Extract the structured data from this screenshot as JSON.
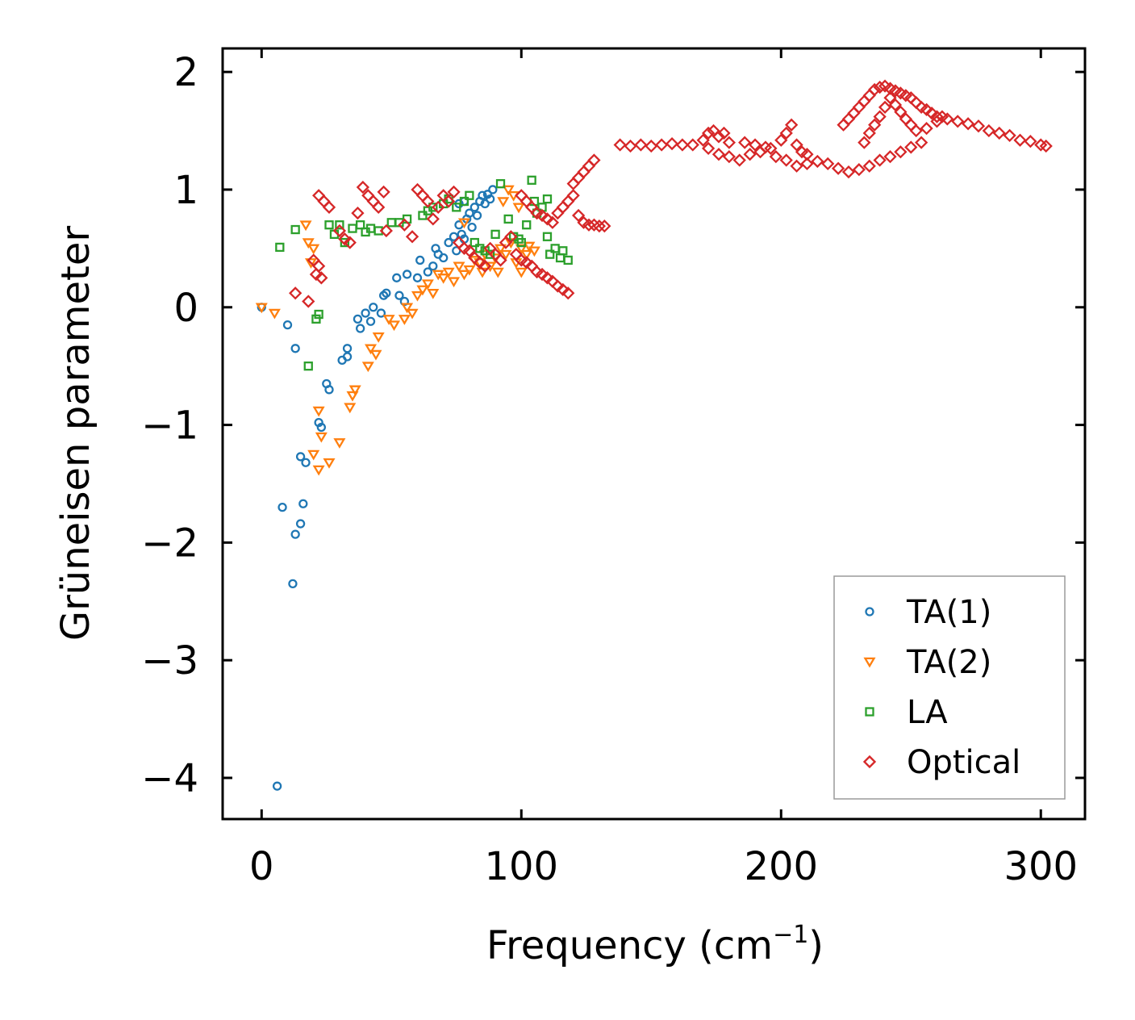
{
  "chart_data": {
    "type": "scatter",
    "title": "",
    "xlabel": "Frequency (cm",
    "xlabel_sup": "−1",
    "xlabel_end": ")",
    "ylabel": "Grüneisen parameter",
    "xlim": [
      -15,
      317
    ],
    "ylim": [
      -4.35,
      2.2
    ],
    "xticks": [
      0,
      100,
      200,
      300
    ],
    "xtick_labels": [
      "0",
      "100",
      "200",
      "300"
    ],
    "yticks": [
      2,
      1,
      0,
      -1,
      -2,
      -3,
      -4
    ],
    "ytick_labels": [
      "2",
      "1",
      "0",
      "−1",
      "−2",
      "−3",
      "−4"
    ],
    "legend_position": "lower-right",
    "series": [
      {
        "name": "TA(1)",
        "marker": "circle",
        "color": "#1f77b4",
        "points": [
          [
            0,
            0
          ],
          [
            6,
            -4.07
          ],
          [
            8,
            -1.7
          ],
          [
            12,
            -2.35
          ],
          [
            13,
            -1.93
          ],
          [
            15,
            -1.84
          ],
          [
            15,
            -1.27
          ],
          [
            16,
            -1.67
          ],
          [
            17,
            -1.32
          ],
          [
            13,
            -0.35
          ],
          [
            10,
            -0.15
          ],
          [
            22,
            -0.98
          ],
          [
            23,
            -1.02
          ],
          [
            25,
            -0.65
          ],
          [
            26,
            -0.7
          ],
          [
            31,
            -0.45
          ],
          [
            33,
            -0.35
          ],
          [
            33,
            -0.42
          ],
          [
            37,
            -0.1
          ],
          [
            38,
            -0.18
          ],
          [
            40,
            -0.05
          ],
          [
            42,
            -0.12
          ],
          [
            43,
            0.0
          ],
          [
            46,
            -0.05
          ],
          [
            47,
            0.1
          ],
          [
            48,
            0.12
          ],
          [
            52,
            0.25
          ],
          [
            53,
            0.1
          ],
          [
            55,
            0.05
          ],
          [
            56,
            0.28
          ],
          [
            60,
            0.25
          ],
          [
            61,
            0.4
          ],
          [
            64,
            0.3
          ],
          [
            66,
            0.35
          ],
          [
            67,
            0.5
          ],
          [
            68,
            0.45
          ],
          [
            70,
            0.42
          ],
          [
            72,
            0.55
          ],
          [
            74,
            0.6
          ],
          [
            75,
            0.48
          ],
          [
            76,
            0.7
          ],
          [
            77,
            0.62
          ],
          [
            78,
            0.58
          ],
          [
            79,
            0.75
          ],
          [
            80,
            0.8
          ],
          [
            81,
            0.68
          ],
          [
            82,
            0.85
          ],
          [
            83,
            0.78
          ],
          [
            84,
            0.9
          ],
          [
            85,
            0.95
          ],
          [
            86,
            0.88
          ],
          [
            87,
            0.96
          ],
          [
            88,
            0.92
          ],
          [
            89,
            1.0
          ],
          [
            78,
            0.9
          ],
          [
            76,
            0.88
          ]
        ]
      },
      {
        "name": "TA(2)",
        "marker": "triangle-down",
        "color": "#ff7f0e",
        "points": [
          [
            0,
            0
          ],
          [
            5,
            -0.05
          ],
          [
            17,
            0.7
          ],
          [
            18,
            0.55
          ],
          [
            19,
            0.38
          ],
          [
            20,
            0.5
          ],
          [
            20,
            -1.25
          ],
          [
            22,
            -1.38
          ],
          [
            23,
            -1.1
          ],
          [
            22,
            -0.88
          ],
          [
            26,
            -1.32
          ],
          [
            30,
            -1.15
          ],
          [
            34,
            -0.85
          ],
          [
            35,
            -0.75
          ],
          [
            36,
            -0.7
          ],
          [
            41,
            -0.5
          ],
          [
            42,
            -0.35
          ],
          [
            44,
            -0.4
          ],
          [
            45,
            -0.25
          ],
          [
            49,
            -0.1
          ],
          [
            51,
            -0.15
          ],
          [
            55,
            -0.1
          ],
          [
            56,
            0.0
          ],
          [
            58,
            -0.05
          ],
          [
            60,
            0.1
          ],
          [
            62,
            0.15
          ],
          [
            64,
            0.2
          ],
          [
            66,
            0.12
          ],
          [
            68,
            0.28
          ],
          [
            70,
            0.25
          ],
          [
            72,
            0.3
          ],
          [
            74,
            0.22
          ],
          [
            76,
            0.35
          ],
          [
            78,
            0.28
          ],
          [
            80,
            0.32
          ],
          [
            82,
            0.4
          ],
          [
            84,
            0.38
          ],
          [
            86,
            0.45
          ],
          [
            88,
            0.35
          ],
          [
            90,
            0.42
          ],
          [
            92,
            0.5
          ],
          [
            94,
            0.45
          ],
          [
            96,
            0.55
          ],
          [
            98,
            0.38
          ],
          [
            100,
            0.5
          ],
          [
            102,
            0.45
          ],
          [
            103,
            0.52
          ],
          [
            105,
            0.48
          ],
          [
            93,
            0.9
          ],
          [
            95,
            1.0
          ],
          [
            97,
            0.95
          ],
          [
            99,
            0.85
          ],
          [
            100,
            0.3
          ],
          [
            91,
            0.3
          ],
          [
            85,
            0.3
          ],
          [
            78,
            0.72
          ]
        ]
      },
      {
        "name": "LA",
        "marker": "square",
        "color": "#2ca02c",
        "points": [
          [
            7,
            0.51
          ],
          [
            13,
            0.66
          ],
          [
            18,
            -0.5
          ],
          [
            21,
            -0.1
          ],
          [
            22,
            -0.06
          ],
          [
            26,
            0.7
          ],
          [
            28,
            0.62
          ],
          [
            30,
            0.7
          ],
          [
            32,
            0.55
          ],
          [
            35,
            0.67
          ],
          [
            38,
            0.7
          ],
          [
            40,
            0.64
          ],
          [
            42,
            0.67
          ],
          [
            45,
            0.65
          ],
          [
            50,
            0.72
          ],
          [
            53,
            0.72
          ],
          [
            56,
            0.75
          ],
          [
            62,
            0.78
          ],
          [
            64,
            0.82
          ],
          [
            66,
            0.85
          ],
          [
            70,
            0.88
          ],
          [
            72,
            0.92
          ],
          [
            75,
            0.85
          ],
          [
            78,
            0.9
          ],
          [
            80,
            0.95
          ],
          [
            82,
            0.55
          ],
          [
            84,
            0.5
          ],
          [
            86,
            0.48
          ],
          [
            88,
            0.45
          ],
          [
            90,
            0.62
          ],
          [
            92,
            1.05
          ],
          [
            95,
            0.75
          ],
          [
            97,
            0.6
          ],
          [
            99,
            0.58
          ],
          [
            100,
            0.55
          ],
          [
            102,
            0.7
          ],
          [
            104,
            1.08
          ],
          [
            105,
            0.9
          ],
          [
            106,
            0.8
          ],
          [
            108,
            0.85
          ],
          [
            110,
            0.92
          ],
          [
            110,
            0.6
          ],
          [
            111,
            0.45
          ],
          [
            113,
            0.5
          ],
          [
            115,
            0.42
          ],
          [
            116,
            0.48
          ],
          [
            118,
            0.4
          ]
        ]
      },
      {
        "name": "Optical",
        "marker": "diamond",
        "color": "#d62728",
        "points": [
          [
            13,
            0.12
          ],
          [
            18,
            0.05
          ],
          [
            20,
            0.4
          ],
          [
            21,
            0.28
          ],
          [
            22,
            0.35
          ],
          [
            23,
            0.25
          ],
          [
            22,
            0.95
          ],
          [
            24,
            0.9
          ],
          [
            26,
            0.85
          ],
          [
            30,
            0.65
          ],
          [
            32,
            0.58
          ],
          [
            34,
            0.55
          ],
          [
            37,
            0.8
          ],
          [
            39,
            1.02
          ],
          [
            41,
            0.95
          ],
          [
            43,
            0.9
          ],
          [
            45,
            0.85
          ],
          [
            47,
            0.98
          ],
          [
            48,
            0.65
          ],
          [
            55,
            0.7
          ],
          [
            58,
            0.6
          ],
          [
            60,
            1.0
          ],
          [
            62,
            0.95
          ],
          [
            64,
            0.9
          ],
          [
            66,
            0.75
          ],
          [
            68,
            0.85
          ],
          [
            70,
            0.95
          ],
          [
            72,
            0.9
          ],
          [
            74,
            0.98
          ],
          [
            76,
            0.55
          ],
          [
            78,
            0.5
          ],
          [
            80,
            0.48
          ],
          [
            82,
            0.42
          ],
          [
            84,
            0.38
          ],
          [
            86,
            0.35
          ],
          [
            88,
            0.5
          ],
          [
            90,
            0.45
          ],
          [
            92,
            0.4
          ],
          [
            94,
            0.55
          ],
          [
            96,
            0.6
          ],
          [
            98,
            0.45
          ],
          [
            100,
            0.4
          ],
          [
            102,
            0.38
          ],
          [
            104,
            0.35
          ],
          [
            106,
            0.3
          ],
          [
            108,
            0.28
          ],
          [
            110,
            0.25
          ],
          [
            112,
            0.22
          ],
          [
            114,
            0.18
          ],
          [
            116,
            0.15
          ],
          [
            118,
            0.12
          ],
          [
            100,
            0.95
          ],
          [
            102,
            0.9
          ],
          [
            104,
            0.85
          ],
          [
            106,
            0.8
          ],
          [
            108,
            0.78
          ],
          [
            110,
            0.75
          ],
          [
            112,
            0.72
          ],
          [
            114,
            0.8
          ],
          [
            116,
            0.85
          ],
          [
            118,
            0.9
          ],
          [
            120,
            0.95
          ],
          [
            122,
            0.78
          ],
          [
            124,
            0.72
          ],
          [
            126,
            0.7
          ],
          [
            128,
            0.7
          ],
          [
            130,
            0.69
          ],
          [
            132,
            0.69
          ],
          [
            120,
            1.05
          ],
          [
            122,
            1.1
          ],
          [
            124,
            1.15
          ],
          [
            126,
            1.2
          ],
          [
            128,
            1.25
          ],
          [
            138,
            1.38
          ],
          [
            142,
            1.37
          ],
          [
            146,
            1.38
          ],
          [
            150,
            1.37
          ],
          [
            154,
            1.38
          ],
          [
            158,
            1.39
          ],
          [
            162,
            1.38
          ],
          [
            166,
            1.38
          ],
          [
            170,
            1.42
          ],
          [
            172,
            1.48
          ],
          [
            174,
            1.5
          ],
          [
            176,
            1.45
          ],
          [
            178,
            1.48
          ],
          [
            180,
            1.4
          ],
          [
            172,
            1.35
          ],
          [
            176,
            1.3
          ],
          [
            180,
            1.28
          ],
          [
            184,
            1.25
          ],
          [
            188,
            1.3
          ],
          [
            192,
            1.32
          ],
          [
            196,
            1.35
          ],
          [
            200,
            1.42
          ],
          [
            202,
            1.48
          ],
          [
            204,
            1.55
          ],
          [
            206,
            1.38
          ],
          [
            208,
            1.32
          ],
          [
            210,
            1.3
          ],
          [
            186,
            1.4
          ],
          [
            190,
            1.38
          ],
          [
            194,
            1.36
          ],
          [
            198,
            1.28
          ],
          [
            202,
            1.25
          ],
          [
            206,
            1.2
          ],
          [
            210,
            1.22
          ],
          [
            214,
            1.24
          ],
          [
            218,
            1.22
          ],
          [
            222,
            1.18
          ],
          [
            226,
            1.15
          ],
          [
            230,
            1.17
          ],
          [
            234,
            1.2
          ],
          [
            238,
            1.25
          ],
          [
            242,
            1.28
          ],
          [
            246,
            1.32
          ],
          [
            250,
            1.36
          ],
          [
            254,
            1.4
          ],
          [
            224,
            1.55
          ],
          [
            226,
            1.6
          ],
          [
            228,
            1.65
          ],
          [
            230,
            1.7
          ],
          [
            232,
            1.75
          ],
          [
            234,
            1.8
          ],
          [
            236,
            1.85
          ],
          [
            238,
            1.87
          ],
          [
            240,
            1.88
          ],
          [
            242,
            1.86
          ],
          [
            244,
            1.84
          ],
          [
            246,
            1.82
          ],
          [
            248,
            1.8
          ],
          [
            250,
            1.78
          ],
          [
            252,
            1.74
          ],
          [
            254,
            1.7
          ],
          [
            256,
            1.68
          ],
          [
            258,
            1.65
          ],
          [
            260,
            1.62
          ],
          [
            264,
            1.6
          ],
          [
            268,
            1.58
          ],
          [
            272,
            1.56
          ],
          [
            276,
            1.54
          ],
          [
            280,
            1.5
          ],
          [
            284,
            1.48
          ],
          [
            288,
            1.46
          ],
          [
            292,
            1.42
          ],
          [
            296,
            1.41
          ],
          [
            300,
            1.38
          ],
          [
            302,
            1.37
          ],
          [
            232,
            1.4
          ],
          [
            234,
            1.48
          ],
          [
            236,
            1.55
          ],
          [
            238,
            1.62
          ],
          [
            240,
            1.7
          ],
          [
            242,
            1.78
          ],
          [
            244,
            1.72
          ],
          [
            246,
            1.66
          ],
          [
            248,
            1.6
          ],
          [
            250,
            1.55
          ],
          [
            252,
            1.5
          ],
          [
            256,
            1.52
          ],
          [
            260,
            1.58
          ],
          [
            262,
            1.62
          ]
        ]
      }
    ]
  }
}
